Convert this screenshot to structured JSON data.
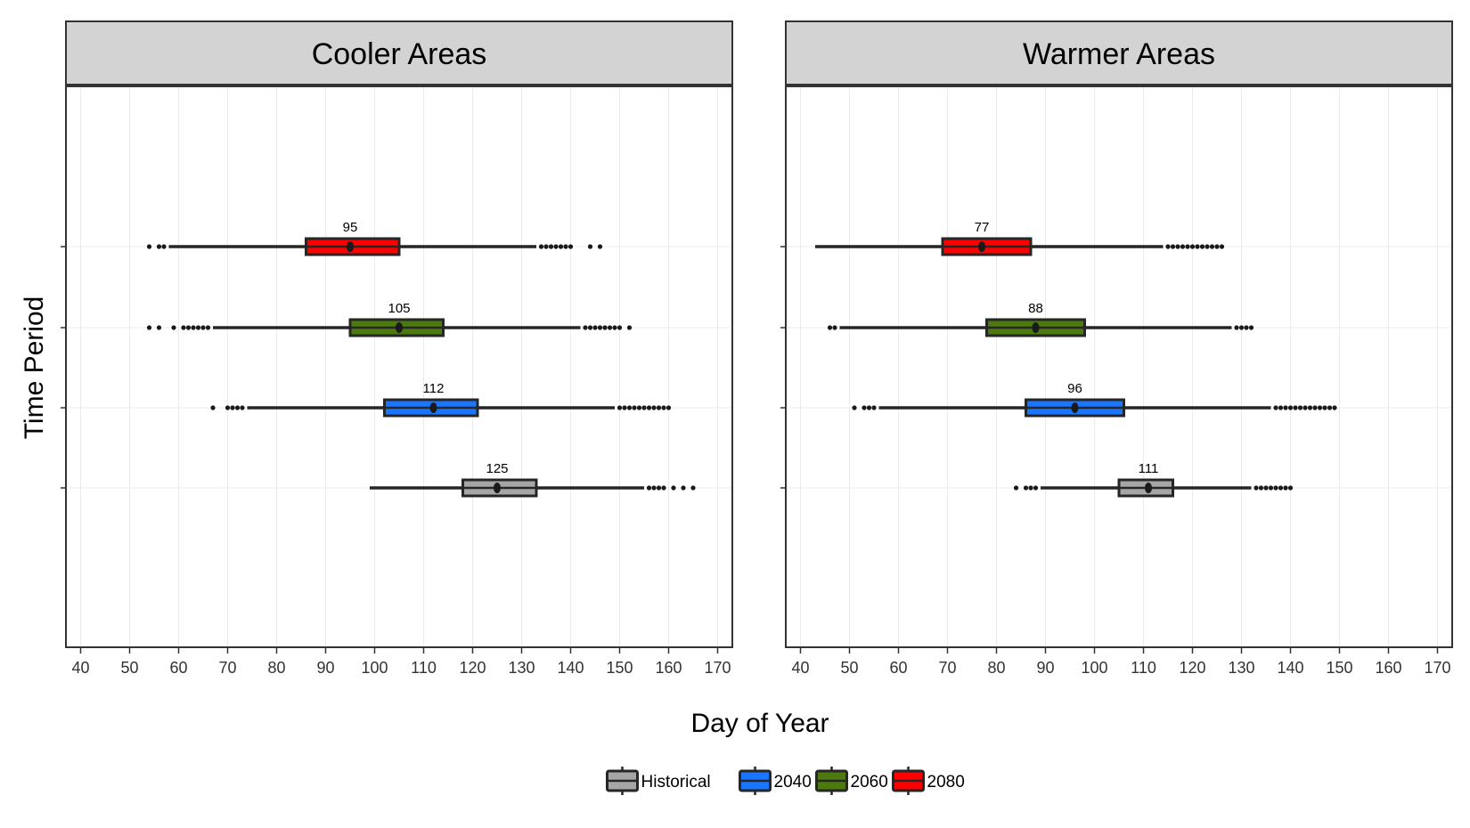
{
  "chart_data": {
    "type": "boxplot",
    "xlabel": "Day of Year",
    "ylabel": "Time Period",
    "xlim": [
      37,
      173
    ],
    "x_ticks": [
      "40",
      "50",
      "60",
      "70",
      "80",
      "90",
      "100",
      "110",
      "120",
      "130",
      "140",
      "150",
      "160",
      "170"
    ],
    "grid": true,
    "legend_position": "bottom",
    "legend": [
      {
        "name": "Historical",
        "color": "#a6a6a6"
      },
      {
        "name": "2040",
        "color": "#1a75ff"
      },
      {
        "name": "2060",
        "color": "#4d7a0f"
      },
      {
        "name": "2080",
        "color": "#ff0000"
      }
    ],
    "panels": [
      {
        "title": "Cooler Areas",
        "boxes": [
          {
            "name": "Historical",
            "color": "#a6a6a6",
            "whisker_low": 99,
            "q1": 118,
            "median": 125,
            "q3": 133,
            "whisker_high": 155,
            "median_label": "125",
            "outliers": [
              156,
              157,
              158,
              159,
              161,
              163,
              165
            ]
          },
          {
            "name": "2040",
            "color": "#1a75ff",
            "whisker_low": 74,
            "q1": 102,
            "median": 112,
            "q3": 121,
            "whisker_high": 149,
            "median_label": "112",
            "outliers": [
              67,
              70,
              71,
              72,
              73,
              150,
              151,
              152,
              153,
              154,
              155,
              156,
              157,
              158,
              159,
              160
            ]
          },
          {
            "name": "2060",
            "color": "#4d7a0f",
            "whisker_low": 67,
            "q1": 95,
            "median": 105,
            "q3": 114,
            "whisker_high": 142,
            "median_label": "105",
            "outliers": [
              54,
              56,
              59,
              61,
              62,
              63,
              64,
              65,
              66,
              143,
              144,
              145,
              146,
              147,
              148,
              149,
              150,
              152
            ]
          },
          {
            "name": "2080",
            "color": "#ff0000",
            "whisker_low": 58,
            "q1": 86,
            "median": 95,
            "q3": 105,
            "whisker_high": 133,
            "median_label": "95",
            "outliers": [
              54,
              56,
              57,
              134,
              135,
              136,
              137,
              138,
              139,
              140,
              144,
              146
            ]
          }
        ]
      },
      {
        "title": "Warmer Areas",
        "boxes": [
          {
            "name": "Historical",
            "color": "#a6a6a6",
            "whisker_low": 89,
            "q1": 105,
            "median": 111,
            "q3": 116,
            "whisker_high": 132,
            "median_label": "111",
            "outliers": [
              84,
              86,
              87,
              88,
              133,
              134,
              135,
              136,
              137,
              138,
              139,
              140
            ]
          },
          {
            "name": "2040",
            "color": "#1a75ff",
            "whisker_low": 56,
            "q1": 86,
            "median": 96,
            "q3": 106,
            "whisker_high": 136,
            "median_label": "96",
            "outliers": [
              51,
              53,
              54,
              55,
              137,
              138,
              139,
              140,
              141,
              142,
              143,
              144,
              145,
              146,
              147,
              148,
              149
            ]
          },
          {
            "name": "2060",
            "color": "#4d7a0f",
            "whisker_low": 48,
            "q1": 78,
            "median": 88,
            "q3": 98,
            "whisker_high": 128,
            "median_label": "88",
            "outliers": [
              46,
              47,
              129,
              130,
              131,
              132
            ]
          },
          {
            "name": "2080",
            "color": "#ff0000",
            "whisker_low": 43,
            "q1": 69,
            "median": 77,
            "q3": 87,
            "whisker_high": 114,
            "median_label": "77",
            "outliers": [
              115,
              116,
              117,
              118,
              119,
              120,
              121,
              122,
              123,
              124,
              125,
              126
            ]
          }
        ]
      }
    ]
  }
}
